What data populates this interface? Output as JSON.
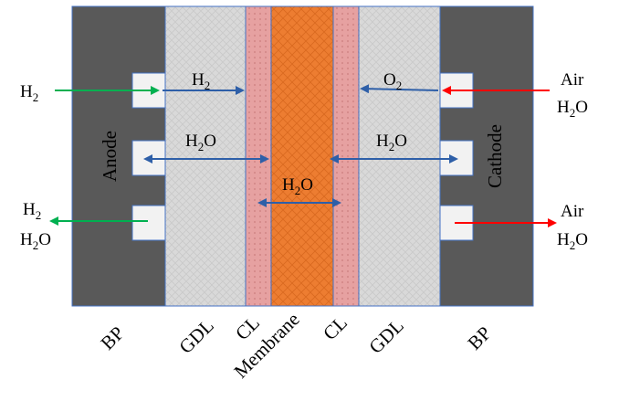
{
  "colors": {
    "bp": "#595959",
    "gdl": "#d9d9d9",
    "cl": "#e6a1a1",
    "membrane": "#ed7d31",
    "border": "#4472c4",
    "blue_arrow": "#2e5fa8",
    "green_arrow": "#00b050",
    "red_arrow": "#ff0000"
  },
  "side_labels": {
    "anode": "Anode",
    "cathode": "Cathode"
  },
  "inlets": {
    "anode_in": {
      "main": "H",
      "sub": "2"
    },
    "anode_out_1": {
      "main": "H",
      "sub": "2"
    },
    "anode_out_2": {
      "main": "H",
      "sub": "2",
      "tail": "O"
    },
    "cathode_in_1": "Air",
    "cathode_in_2": {
      "main": "H",
      "sub": "2",
      "tail": "O"
    },
    "cathode_out_1": "Air",
    "cathode_out_2": {
      "main": "H",
      "sub": "2",
      "tail": "O"
    }
  },
  "flow_labels": {
    "h2_gdl": {
      "main": "H",
      "sub": "2"
    },
    "o2_gdl": {
      "main": "O",
      "sub": "2"
    },
    "h2o_anode": {
      "main": "H",
      "sub": "2",
      "tail": "O"
    },
    "h2o_cathode": {
      "main": "H",
      "sub": "2",
      "tail": "O"
    },
    "h2o_membrane": {
      "main": "H",
      "sub": "2",
      "tail": "O"
    }
  },
  "layer_labels": {
    "bp_left": "BP",
    "gdl_left": "GDL",
    "cl_left": "CL",
    "membrane": "Membrane",
    "cl_right": "CL",
    "gdl_right": "GDL",
    "bp_right": "BP"
  }
}
